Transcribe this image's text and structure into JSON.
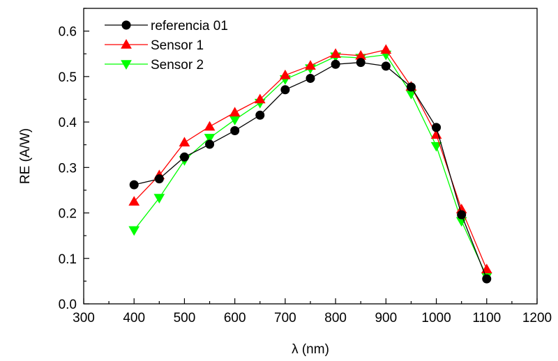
{
  "chart_data": {
    "type": "line",
    "xlabel": "λ (nm)",
    "ylabel": "RE (A/W)",
    "xlim": [
      300,
      1200
    ],
    "ylim": [
      0.0,
      0.65
    ],
    "x_ticks": [
      300,
      400,
      500,
      600,
      700,
      800,
      900,
      1000,
      1100,
      1200
    ],
    "x_tick_labels": [
      "300",
      "400",
      "500",
      "600",
      "700",
      "800",
      "900",
      "1000",
      "1100",
      "1200"
    ],
    "y_ticks": [
      0.0,
      0.1,
      0.2,
      0.3,
      0.4,
      0.5,
      0.6
    ],
    "y_tick_labels": [
      "0.0",
      "0.1",
      "0.2",
      "0.3",
      "0.4",
      "0.5",
      "0.6"
    ],
    "grid": false,
    "legend_position": "top-left",
    "x": [
      400,
      450,
      500,
      550,
      600,
      650,
      700,
      750,
      800,
      850,
      900,
      950,
      1000,
      1050,
      1100
    ],
    "series": [
      {
        "name": "referencia 01",
        "color": "#000000",
        "marker": "circle",
        "values": [
          0.262,
          0.275,
          0.323,
          0.351,
          0.381,
          0.415,
          0.471,
          0.496,
          0.527,
          0.531,
          0.523,
          0.477,
          0.388,
          0.196,
          0.055
        ]
      },
      {
        "name": "Sensor 1",
        "color": "#ff0000",
        "marker": "triangle-up",
        "values": [
          0.225,
          0.283,
          0.355,
          0.39,
          0.421,
          0.45,
          0.503,
          0.524,
          0.55,
          0.546,
          0.559,
          0.478,
          0.372,
          0.208,
          0.076
        ]
      },
      {
        "name": "Sensor 2",
        "color": "#00ff00",
        "marker": "triangle-down",
        "values": [
          0.162,
          0.233,
          0.316,
          0.365,
          0.405,
          0.442,
          0.494,
          0.518,
          0.544,
          0.541,
          0.548,
          0.462,
          0.347,
          0.182,
          0.06
        ]
      }
    ]
  }
}
